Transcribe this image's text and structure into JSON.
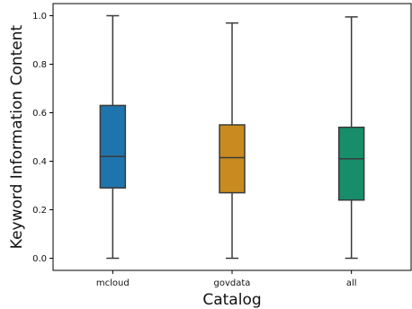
{
  "chart_data": {
    "type": "box",
    "xlabel": "Catalog",
    "ylabel": "Keyword Information Content",
    "ylim": [
      -0.05,
      1.05
    ],
    "yticks": [
      0.0,
      0.2,
      0.4,
      0.6,
      0.8,
      1.0
    ],
    "ytick_labels": [
      "0.0",
      "0.2",
      "0.4",
      "0.6",
      "0.8",
      "1.0"
    ],
    "categories": [
      "mcloud",
      "govdata",
      "all"
    ],
    "boxes": [
      {
        "category": "mcloud",
        "whisker_low": 0.0,
        "q1": 0.29,
        "median": 0.42,
        "q3": 0.63,
        "whisker_high": 1.0,
        "color": "#1f74ad"
      },
      {
        "category": "govdata",
        "whisker_low": 0.0,
        "q1": 0.27,
        "median": 0.415,
        "q3": 0.55,
        "whisker_high": 0.97,
        "color": "#c98a1f"
      },
      {
        "category": "all",
        "whisker_low": 0.0,
        "q1": 0.24,
        "median": 0.41,
        "q3": 0.54,
        "whisker_high": 0.995,
        "color": "#178d6a"
      }
    ],
    "grid": false,
    "legend": "none"
  }
}
